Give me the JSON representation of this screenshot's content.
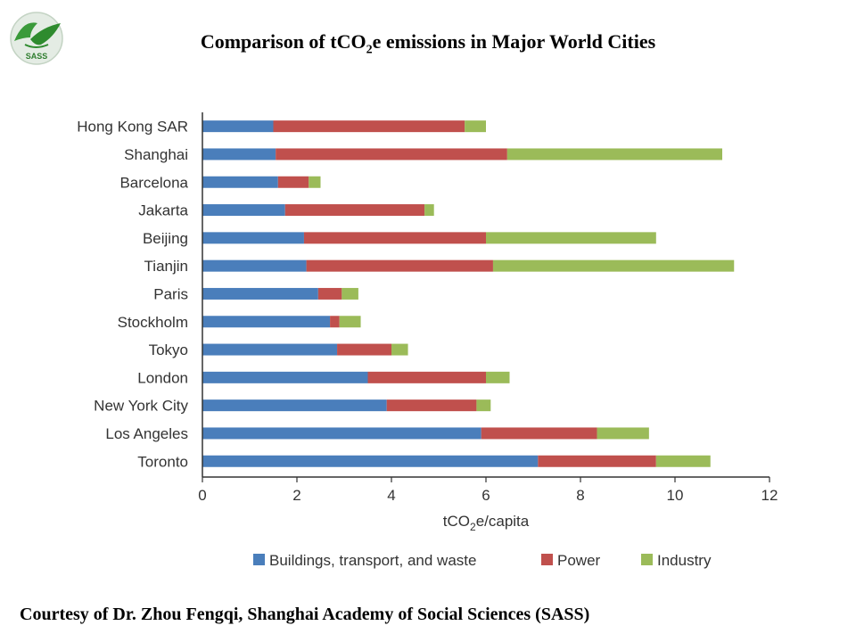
{
  "header": {
    "title_pre": "Comparison of tCO",
    "title_sub": "2",
    "title_post": "e emissions in Major World Cities"
  },
  "logo": {
    "text": "SASS",
    "icon": "sass-dove-globe-logo"
  },
  "footer": {
    "credit": "Courtesy of Dr. Zhou Fengqi, Shanghai Academy of Social Sciences (SASS)"
  },
  "chart_data": {
    "type": "bar",
    "orientation": "horizontal",
    "stacked": true,
    "categories": [
      "Hong Kong SAR",
      "Shanghai",
      "Barcelona",
      "Jakarta",
      "Beijing",
      "Tianjin",
      "Paris",
      "Stockholm",
      "Tokyo",
      "London",
      "New York City",
      "Los Angeles",
      "Toronto"
    ],
    "series": [
      {
        "name": "Buildings, transport, and waste",
        "color": "#4a7ebb",
        "values": [
          1.5,
          1.55,
          1.6,
          1.75,
          2.15,
          2.2,
          2.45,
          2.7,
          2.85,
          3.5,
          3.9,
          5.9,
          7.1
        ]
      },
      {
        "name": "Power",
        "color": "#c0504d",
        "values": [
          4.05,
          4.9,
          0.65,
          2.95,
          3.85,
          3.95,
          0.5,
          0.2,
          1.15,
          2.5,
          1.9,
          2.45,
          2.5
        ]
      },
      {
        "name": "Industry",
        "color": "#9bbb59",
        "values": [
          0.45,
          4.55,
          0.25,
          0.2,
          3.6,
          5.1,
          0.35,
          0.45,
          0.35,
          0.5,
          0.3,
          1.1,
          1.15
        ]
      }
    ],
    "xlim": [
      0,
      12
    ],
    "xticks": [
      0,
      2,
      4,
      6,
      8,
      10,
      12
    ],
    "xlabel": {
      "pre": "tCO",
      "sub": "2",
      "post": "e/capita"
    },
    "ylabel": "",
    "legend_position": "bottom",
    "grid": false
  }
}
